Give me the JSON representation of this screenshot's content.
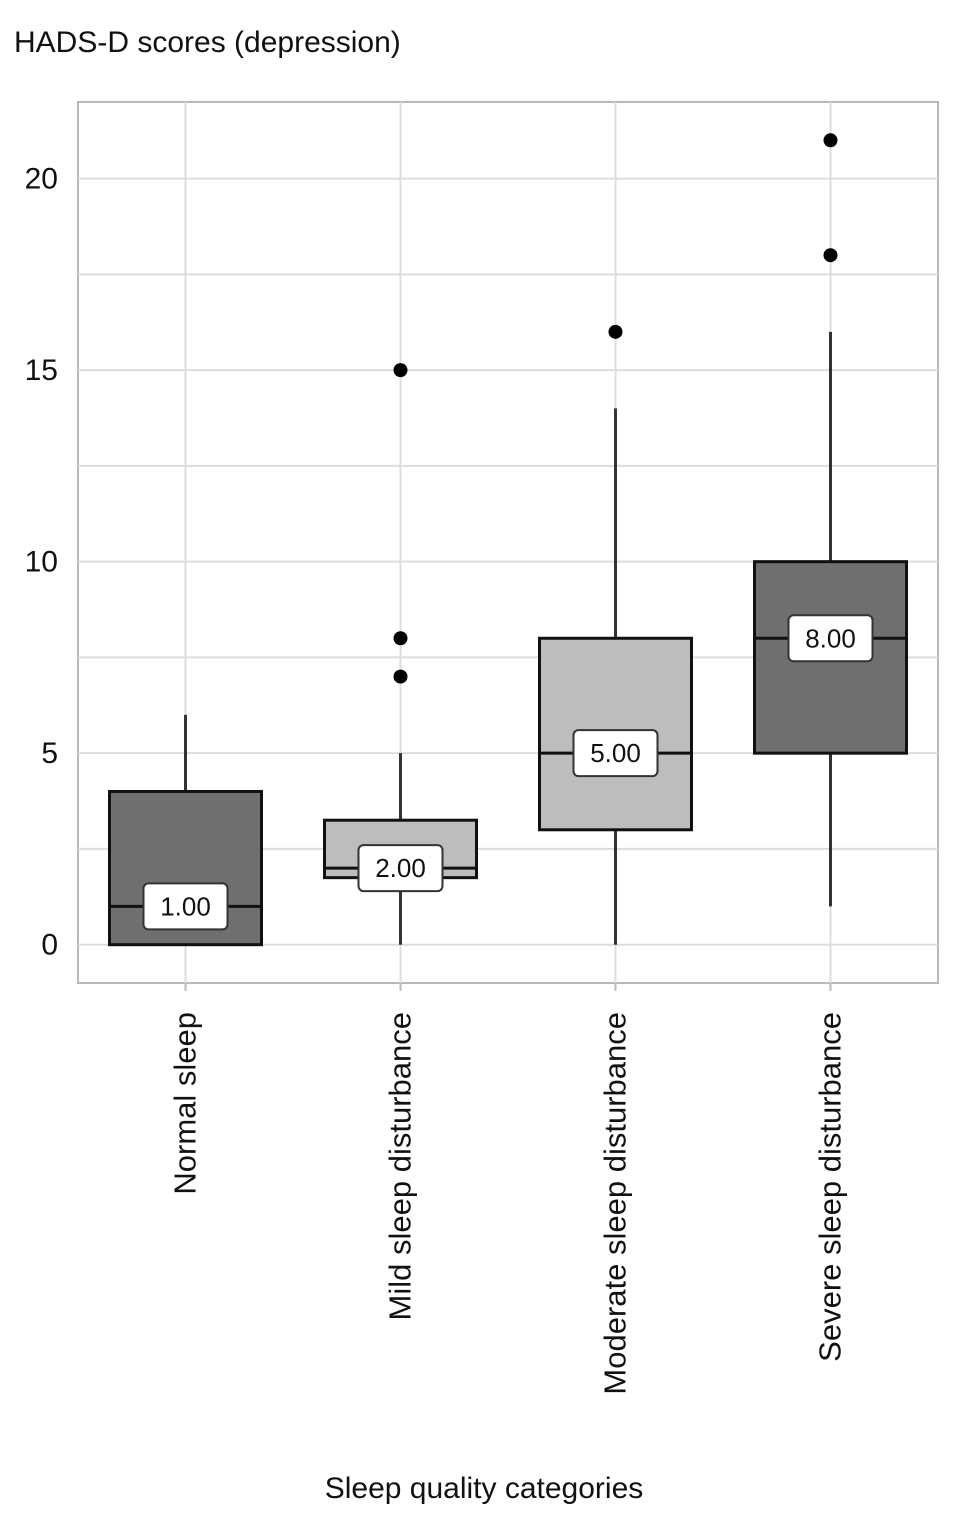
{
  "chart_data": {
    "type": "box",
    "ylabel": "HADS-D scores (depression)",
    "xlabel": "Sleep quality categories",
    "ylim": [
      -1,
      22
    ],
    "yticks": [
      0,
      5,
      10,
      15,
      20
    ],
    "grid": true,
    "colors": {
      "plot_border": "#b9b9b9",
      "grid": "#dddddd",
      "whisker": "#333333",
      "outlier": "#000000",
      "label_box": "#ffffff"
    },
    "categories": [
      "Normal sleep",
      "Mild sleep disturbance",
      "Moderate sleep disturbance",
      "Severe sleep disturbance"
    ],
    "boxes": [
      {
        "category": "Normal sleep",
        "min": 0,
        "q1": 0,
        "median": 1,
        "q3": 4,
        "max": 6,
        "median_label": "1.00",
        "outliers": [],
        "fill": "#6f6f6f"
      },
      {
        "category": "Mild sleep disturbance",
        "min": 0,
        "q1": 1.75,
        "median": 2,
        "q3": 3.25,
        "max": 5,
        "median_label": "2.00",
        "outliers": [
          7,
          8,
          15
        ],
        "fill": "#bdbdbd"
      },
      {
        "category": "Moderate sleep disturbance",
        "min": 0,
        "q1": 3,
        "median": 5,
        "q3": 8,
        "max": 14,
        "median_label": "5.00",
        "outliers": [
          16
        ],
        "fill": "#bdbdbd"
      },
      {
        "category": "Severe sleep disturbance",
        "min": 1,
        "q1": 5,
        "median": 8,
        "q3": 10,
        "max": 16,
        "median_label": "8.00",
        "outliers": [
          18,
          21
        ],
        "fill": "#6f6f6f"
      }
    ]
  }
}
